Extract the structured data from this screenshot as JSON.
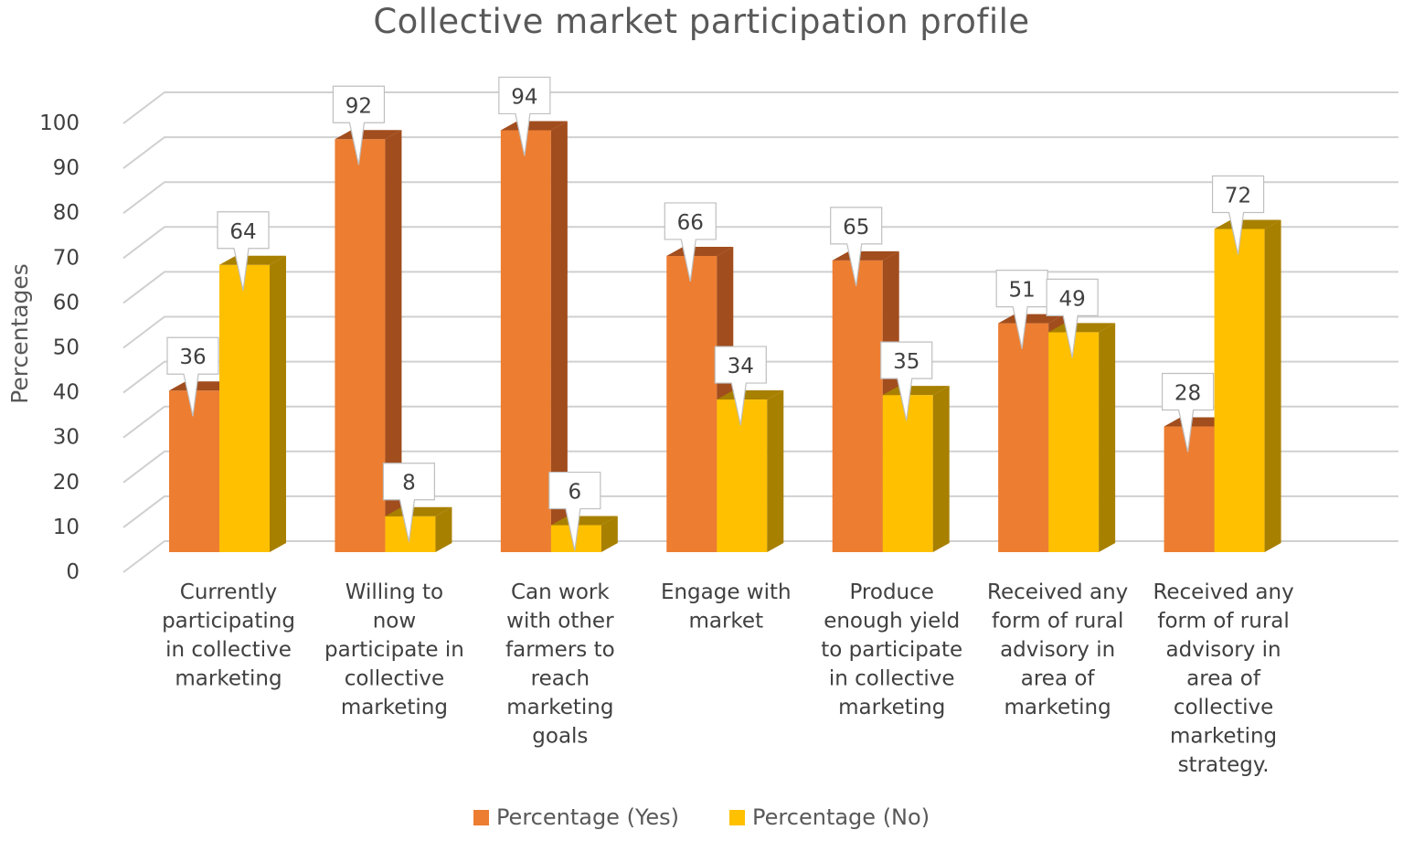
{
  "chart_data": {
    "type": "bar",
    "title": "Collective market participation profile",
    "ylabel": "Percentages",
    "xlabel": "",
    "ylim": [
      0,
      100
    ],
    "yticks": [
      0,
      10,
      20,
      30,
      40,
      50,
      60,
      70,
      80,
      90,
      100
    ],
    "grid": true,
    "legend_position": "bottom",
    "categories": [
      [
        "Currently",
        "participating",
        "in collective",
        "marketing"
      ],
      [
        "Willing to",
        "now",
        "participate in",
        "collective",
        "marketing"
      ],
      [
        "Can work",
        "with other",
        "farmers to",
        "reach",
        "marketing",
        "goals"
      ],
      [
        "Engage with",
        "market"
      ],
      [
        "Produce",
        "enough yield",
        "to participate",
        "in collective",
        "marketing"
      ],
      [
        "Received any",
        "form of rural",
        "advisory in",
        "area of",
        "marketing"
      ],
      [
        "Received any",
        "form of rural",
        "advisory in",
        "area of",
        "collective",
        "marketing",
        "strategy."
      ]
    ],
    "series": [
      {
        "name": "Percentage (Yes)",
        "color": "#ED7D31",
        "side_color": "#A14D1E",
        "values": [
          36,
          92,
          94,
          66,
          65,
          51,
          28
        ]
      },
      {
        "name": "Percentage (No)",
        "color": "#FFC000",
        "side_color": "#A88000",
        "values": [
          64,
          8,
          6,
          34,
          35,
          49,
          72
        ]
      }
    ]
  }
}
